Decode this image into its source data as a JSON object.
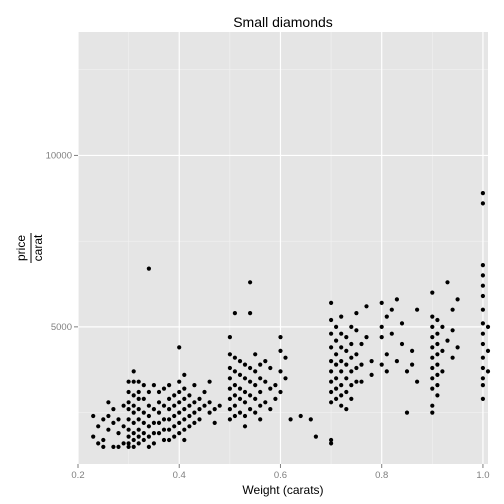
{
  "chart_data": {
    "type": "scatter",
    "title": "Small diamonds",
    "xlabel": "Weight (carats)",
    "ylabel": {
      "numerator": "price",
      "denominator": "carat"
    },
    "xlim": [
      0.2,
      1.01
    ],
    "ylim": [
      1000,
      13600
    ],
    "x_ticks": [
      0.2,
      0.4,
      0.6,
      0.8,
      1.0
    ],
    "x_tick_labels": [
      "0.2",
      "0.4",
      "0.6",
      "0.8",
      "1.0"
    ],
    "y_ticks": [
      5000,
      10000
    ],
    "y_tick_labels": [
      "5000",
      "10000"
    ],
    "grid": true,
    "legend": "none",
    "colors": {
      "panel_background": "#e5e5e5",
      "grid_major": "#ffffff",
      "grid_minor": "#f2f2f2",
      "point": "#000000",
      "tick_label": "#7f7f7f"
    },
    "points": [
      [
        0.23,
        2400
      ],
      [
        0.23,
        1800
      ],
      [
        0.24,
        1600
      ],
      [
        0.24,
        2100
      ],
      [
        0.25,
        2300
      ],
      [
        0.25,
        1500
      ],
      [
        0.25,
        1700
      ],
      [
        0.26,
        2400
      ],
      [
        0.26,
        2800
      ],
      [
        0.26,
        2000
      ],
      [
        0.27,
        2600
      ],
      [
        0.27,
        2200
      ],
      [
        0.27,
        1500
      ],
      [
        0.28,
        2300
      ],
      [
        0.28,
        1900
      ],
      [
        0.28,
        1500
      ],
      [
        0.29,
        2700
      ],
      [
        0.29,
        1600
      ],
      [
        0.29,
        2100
      ],
      [
        0.3,
        3400
      ],
      [
        0.3,
        3100
      ],
      [
        0.3,
        2800
      ],
      [
        0.3,
        2600
      ],
      [
        0.3,
        2300
      ],
      [
        0.3,
        2000
      ],
      [
        0.3,
        1800
      ],
      [
        0.3,
        1600
      ],
      [
        0.3,
        1500
      ],
      [
        0.31,
        3700
      ],
      [
        0.31,
        3400
      ],
      [
        0.31,
        3000
      ],
      [
        0.31,
        2700
      ],
      [
        0.31,
        2500
      ],
      [
        0.31,
        2200
      ],
      [
        0.31,
        1900
      ],
      [
        0.31,
        1700
      ],
      [
        0.31,
        1500
      ],
      [
        0.32,
        3400
      ],
      [
        0.32,
        3100
      ],
      [
        0.32,
        2900
      ],
      [
        0.32,
        2600
      ],
      [
        0.32,
        2300
      ],
      [
        0.32,
        2000
      ],
      [
        0.32,
        1800
      ],
      [
        0.32,
        1600
      ],
      [
        0.33,
        3300
      ],
      [
        0.33,
        2900
      ],
      [
        0.33,
        2500
      ],
      [
        0.33,
        2200
      ],
      [
        0.33,
        1900
      ],
      [
        0.33,
        1700
      ],
      [
        0.34,
        6700
      ],
      [
        0.34,
        3100
      ],
      [
        0.34,
        2700
      ],
      [
        0.34,
        2400
      ],
      [
        0.34,
        2100
      ],
      [
        0.34,
        1800
      ],
      [
        0.34,
        1500
      ],
      [
        0.35,
        3300
      ],
      [
        0.35,
        2600
      ],
      [
        0.35,
        2200
      ],
      [
        0.35,
        1900
      ],
      [
        0.35,
        1600
      ],
      [
        0.36,
        3100
      ],
      [
        0.36,
        2800
      ],
      [
        0.36,
        2500
      ],
      [
        0.36,
        2200
      ],
      [
        0.36,
        1900
      ],
      [
        0.37,
        3200
      ],
      [
        0.37,
        2700
      ],
      [
        0.37,
        2300
      ],
      [
        0.37,
        2000
      ],
      [
        0.37,
        1700
      ],
      [
        0.38,
        3300
      ],
      [
        0.38,
        2900
      ],
      [
        0.38,
        2600
      ],
      [
        0.38,
        2300
      ],
      [
        0.38,
        2000
      ],
      [
        0.38,
        1700
      ],
      [
        0.39,
        3000
      ],
      [
        0.39,
        2700
      ],
      [
        0.39,
        2400
      ],
      [
        0.39,
        2100
      ],
      [
        0.39,
        1800
      ],
      [
        0.4,
        4400
      ],
      [
        0.4,
        3400
      ],
      [
        0.4,
        3100
      ],
      [
        0.4,
        2800
      ],
      [
        0.4,
        2500
      ],
      [
        0.4,
        2200
      ],
      [
        0.4,
        1900
      ],
      [
        0.41,
        3600
      ],
      [
        0.41,
        3200
      ],
      [
        0.41,
        2900
      ],
      [
        0.41,
        2600
      ],
      [
        0.41,
        2300
      ],
      [
        0.41,
        2000
      ],
      [
        0.41,
        1700
      ],
      [
        0.42,
        3000
      ],
      [
        0.42,
        2700
      ],
      [
        0.42,
        2400
      ],
      [
        0.42,
        2100
      ],
      [
        0.43,
        3300
      ],
      [
        0.43,
        2800
      ],
      [
        0.43,
        2500
      ],
      [
        0.43,
        2200
      ],
      [
        0.44,
        2900
      ],
      [
        0.44,
        2600
      ],
      [
        0.44,
        2300
      ],
      [
        0.45,
        3100
      ],
      [
        0.45,
        2700
      ],
      [
        0.46,
        2800
      ],
      [
        0.46,
        2500
      ],
      [
        0.47,
        2600
      ],
      [
        0.48,
        2700
      ],
      [
        0.46,
        3400
      ],
      [
        0.47,
        2200
      ],
      [
        0.5,
        4700
      ],
      [
        0.5,
        4200
      ],
      [
        0.5,
        3800
      ],
      [
        0.5,
        3500
      ],
      [
        0.5,
        3200
      ],
      [
        0.5,
        2900
      ],
      [
        0.5,
        2600
      ],
      [
        0.5,
        2300
      ],
      [
        0.51,
        5400
      ],
      [
        0.51,
        4100
      ],
      [
        0.51,
        3700
      ],
      [
        0.51,
        3300
      ],
      [
        0.51,
        3000
      ],
      [
        0.51,
        2700
      ],
      [
        0.51,
        2400
      ],
      [
        0.52,
        4000
      ],
      [
        0.52,
        3600
      ],
      [
        0.52,
        3200
      ],
      [
        0.52,
        2900
      ],
      [
        0.52,
        2500
      ],
      [
        0.53,
        3900
      ],
      [
        0.53,
        3500
      ],
      [
        0.53,
        3100
      ],
      [
        0.53,
        2800
      ],
      [
        0.53,
        2400
      ],
      [
        0.53,
        2100
      ],
      [
        0.54,
        6300
      ],
      [
        0.54,
        5400
      ],
      [
        0.54,
        3800
      ],
      [
        0.54,
        3400
      ],
      [
        0.54,
        3000
      ],
      [
        0.54,
        2600
      ],
      [
        0.55,
        4200
      ],
      [
        0.55,
        3700
      ],
      [
        0.55,
        3300
      ],
      [
        0.55,
        2900
      ],
      [
        0.55,
        2500
      ],
      [
        0.56,
        3900
      ],
      [
        0.56,
        3500
      ],
      [
        0.56,
        3100
      ],
      [
        0.56,
        2700
      ],
      [
        0.56,
        2300
      ],
      [
        0.57,
        4000
      ],
      [
        0.57,
        3400
      ],
      [
        0.57,
        2800
      ],
      [
        0.58,
        3800
      ],
      [
        0.58,
        3200
      ],
      [
        0.58,
        2600
      ],
      [
        0.59,
        3300
      ],
      [
        0.59,
        2900
      ],
      [
        0.6,
        4300
      ],
      [
        0.6,
        3700
      ],
      [
        0.6,
        3100
      ],
      [
        0.6,
        4700
      ],
      [
        0.61,
        4100
      ],
      [
        0.61,
        3500
      ],
      [
        0.62,
        2300
      ],
      [
        0.64,
        2400
      ],
      [
        0.66,
        2300
      ],
      [
        0.67,
        1800
      ],
      [
        0.7,
        5700
      ],
      [
        0.7,
        5200
      ],
      [
        0.7,
        4800
      ],
      [
        0.7,
        4400
      ],
      [
        0.7,
        4000
      ],
      [
        0.7,
        3700
      ],
      [
        0.7,
        3400
      ],
      [
        0.7,
        3100
      ],
      [
        0.7,
        2800
      ],
      [
        0.7,
        1700
      ],
      [
        0.7,
        1600
      ],
      [
        0.71,
        5000
      ],
      [
        0.71,
        4600
      ],
      [
        0.71,
        4200
      ],
      [
        0.71,
        3900
      ],
      [
        0.71,
        3500
      ],
      [
        0.71,
        3200
      ],
      [
        0.71,
        2900
      ],
      [
        0.72,
        5300
      ],
      [
        0.72,
        4800
      ],
      [
        0.72,
        4400
      ],
      [
        0.72,
        4000
      ],
      [
        0.72,
        3700
      ],
      [
        0.72,
        3300
      ],
      [
        0.72,
        3000
      ],
      [
        0.72,
        2700
      ],
      [
        0.73,
        4700
      ],
      [
        0.73,
        4300
      ],
      [
        0.73,
        3900
      ],
      [
        0.73,
        3500
      ],
      [
        0.73,
        3100
      ],
      [
        0.73,
        2600
      ],
      [
        0.74,
        5000
      ],
      [
        0.74,
        4500
      ],
      [
        0.74,
        4100
      ],
      [
        0.74,
        3700
      ],
      [
        0.74,
        3300
      ],
      [
        0.74,
        2900
      ],
      [
        0.75,
        5400
      ],
      [
        0.75,
        4900
      ],
      [
        0.75,
        4200
      ],
      [
        0.75,
        3800
      ],
      [
        0.75,
        3400
      ],
      [
        0.76,
        4500
      ],
      [
        0.76,
        3900
      ],
      [
        0.76,
        3400
      ],
      [
        0.77,
        5600
      ],
      [
        0.77,
        4700
      ],
      [
        0.78,
        4000
      ],
      [
        0.78,
        3600
      ],
      [
        0.8,
        5700
      ],
      [
        0.8,
        5000
      ],
      [
        0.8,
        4700
      ],
      [
        0.8,
        3900
      ],
      [
        0.81,
        5300
      ],
      [
        0.81,
        4200
      ],
      [
        0.81,
        3700
      ],
      [
        0.82,
        5500
      ],
      [
        0.82,
        4800
      ],
      [
        0.83,
        5800
      ],
      [
        0.83,
        4000
      ],
      [
        0.84,
        5100
      ],
      [
        0.84,
        4500
      ],
      [
        0.85,
        3700
      ],
      [
        0.85,
        2500
      ],
      [
        0.86,
        4300
      ],
      [
        0.86,
        3900
      ],
      [
        0.87,
        5500
      ],
      [
        0.87,
        3400
      ],
      [
        0.9,
        6000
      ],
      [
        0.9,
        5300
      ],
      [
        0.9,
        5000
      ],
      [
        0.9,
        4700
      ],
      [
        0.9,
        4400
      ],
      [
        0.9,
        4100
      ],
      [
        0.9,
        3800
      ],
      [
        0.9,
        3500
      ],
      [
        0.9,
        3200
      ],
      [
        0.9,
        2700
      ],
      [
        0.9,
        2500
      ],
      [
        0.91,
        5200
      ],
      [
        0.91,
        4800
      ],
      [
        0.91,
        4500
      ],
      [
        0.91,
        4200
      ],
      [
        0.91,
        3900
      ],
      [
        0.91,
        3600
      ],
      [
        0.91,
        3300
      ],
      [
        0.91,
        3000
      ],
      [
        0.92,
        5000
      ],
      [
        0.92,
        4300
      ],
      [
        0.92,
        3700
      ],
      [
        0.93,
        4600
      ],
      [
        0.93,
        6300
      ],
      [
        0.94,
        5500
      ],
      [
        0.94,
        4900
      ],
      [
        0.94,
        4100
      ],
      [
        0.95,
        5800
      ],
      [
        0.95,
        4400
      ],
      [
        1.0,
        8900
      ],
      [
        1.0,
        8600
      ],
      [
        1.0,
        6800
      ],
      [
        1.0,
        6500
      ],
      [
        1.0,
        6200
      ],
      [
        1.0,
        5900
      ],
      [
        1.0,
        5500
      ],
      [
        1.0,
        5100
      ],
      [
        1.0,
        4800
      ],
      [
        1.0,
        4500
      ],
      [
        1.0,
        4100
      ],
      [
        1.0,
        3800
      ],
      [
        1.0,
        3500
      ],
      [
        1.0,
        3300
      ],
      [
        1.0,
        2900
      ],
      [
        1.01,
        5000
      ],
      [
        1.01,
        4300
      ],
      [
        1.01,
        3700
      ]
    ]
  }
}
